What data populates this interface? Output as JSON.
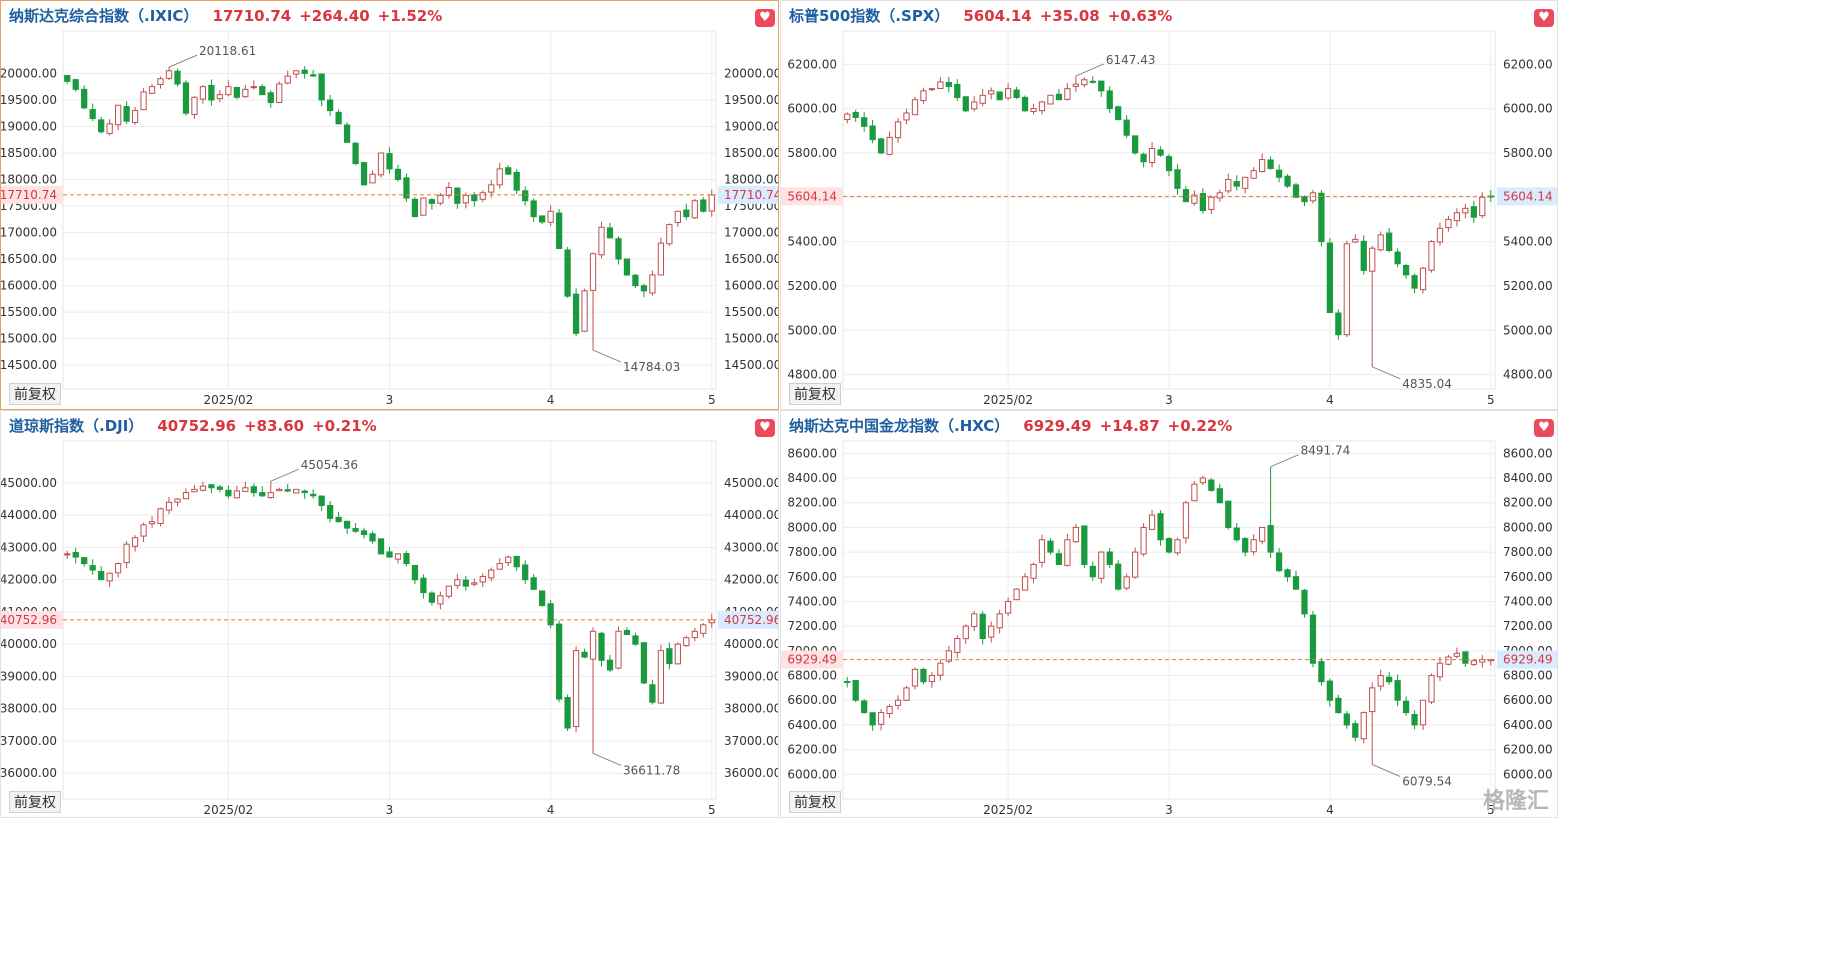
{
  "adjust_label": "前复权",
  "watermark": "格隆汇",
  "colors": {
    "up": "#c0504d",
    "down": "#1a9a3e",
    "grid": "#ececec",
    "axis_text": "#333333",
    "ref_line": "#e07a3a",
    "tag_left_bg": "#fde3e3",
    "tag_left_text": "#d9363e",
    "tag_right_bg": "#d9ecff",
    "tag_right_text": "#d9363e"
  },
  "panels": [
    {
      "name": "纳斯达克综合指数（.IXIC）",
      "price": "17710.74",
      "change": "+264.40",
      "pct": "+1.52%",
      "price_tag": "17710.74",
      "high_label": "20118.61",
      "low_label": "14784.03"
    },
    {
      "name": "标普500指数（.SPX）",
      "price": "5604.14",
      "change": "+35.08",
      "pct": "+0.63%",
      "price_tag": "5604.14",
      "high_label": "6147.43",
      "low_label": "4835.04"
    },
    {
      "name": "道琼斯指数（.DJI）",
      "price": "40752.96",
      "change": "+83.60",
      "pct": "+0.21%",
      "price_tag": "40752.96",
      "high_label": "45054.36",
      "low_label": "36611.78"
    },
    {
      "name": "纳斯达克中国金龙指数（.HXC）",
      "price": "6929.49",
      "change": "+14.87",
      "pct": "+0.22%",
      "price_tag": "6929.49",
      "high_label": "8491.74",
      "low_label": "6079.54"
    }
  ],
  "chart_data": [
    {
      "type": "candlestick",
      "title": "纳斯达克综合指数（.IXIC）",
      "x_tick_labels": [
        "2025/02",
        "3",
        "4",
        "5"
      ],
      "x_tick_index": [
        19,
        38,
        57,
        76
      ],
      "y_ticks": [
        "20000.00",
        "19500.00",
        "19000.00",
        "18500.00",
        "18000.00",
        "17500.00",
        "17000.00",
        "16500.00",
        "16000.00",
        "15500.00",
        "15000.00",
        "14500.00"
      ],
      "y_tick_values": [
        20000,
        19500,
        19000,
        18500,
        18000,
        17500,
        17000,
        16500,
        16000,
        15500,
        15000,
        14500
      ],
      "ylim": [
        14050,
        20800
      ],
      "current_price": 17710.74,
      "high": {
        "value": 20118.61,
        "label": "20118.61",
        "index": 12
      },
      "low": {
        "value": 14784.03,
        "label": "14784.03",
        "index": 62
      },
      "closes": [
        19850,
        19700,
        19350,
        19150,
        18900,
        19050,
        19400,
        19100,
        19300,
        19650,
        19750,
        19900,
        20050,
        19800,
        19250,
        19550,
        19750,
        19500,
        19600,
        19750,
        19550,
        19700,
        19750,
        19600,
        19450,
        19800,
        19950,
        20050,
        20000,
        19950,
        19500,
        19300,
        19050,
        18700,
        18300,
        17900,
        18100,
        18500,
        18200,
        18000,
        17650,
        17300,
        17650,
        17550,
        17700,
        17850,
        17550,
        17700,
        17600,
        17750,
        17900,
        18200,
        18100,
        17800,
        17600,
        17300,
        17200,
        17400,
        16700,
        15800,
        15100,
        15900,
        16600,
        17100,
        16900,
        16500,
        16200,
        16000,
        15900,
        16200,
        16800,
        17150,
        17400,
        17300,
        17600,
        17400,
        17710
      ]
    },
    {
      "type": "candlestick",
      "title": "标普500指数（.SPX）",
      "x_tick_labels": [
        "2025/02",
        "3",
        "4",
        "5"
      ],
      "x_tick_index": [
        19,
        38,
        57,
        76
      ],
      "y_ticks": [
        "6200.00",
        "6000.00",
        "5800.00",
        "5600.00",
        "5400.00",
        "5200.00",
        "5000.00",
        "4800.00"
      ],
      "y_tick_values": [
        6200,
        6000,
        5800,
        5600,
        5400,
        5200,
        5000,
        4800
      ],
      "ylim": [
        4735,
        6350
      ],
      "current_price": 5604.14,
      "high": {
        "value": 6147.43,
        "label": "6147.43",
        "index": 27
      },
      "low": {
        "value": 4835.04,
        "label": "4835.04",
        "index": 62
      },
      "closes": [
        5975,
        5960,
        5920,
        5860,
        5800,
        5870,
        5940,
        5980,
        6040,
        6080,
        6090,
        6120,
        6100,
        6050,
        5990,
        6030,
        6060,
        6080,
        6040,
        6090,
        6050,
        5990,
        6000,
        6030,
        6060,
        6040,
        6090,
        6110,
        6130,
        6120,
        6080,
        6000,
        5950,
        5880,
        5800,
        5760,
        5820,
        5790,
        5720,
        5640,
        5580,
        5610,
        5540,
        5600,
        5620,
        5680,
        5650,
        5690,
        5720,
        5770,
        5730,
        5690,
        5650,
        5600,
        5580,
        5620,
        5400,
        5080,
        4980,
        5390,
        5410,
        5270,
        5370,
        5430,
        5360,
        5300,
        5250,
        5190,
        5280,
        5400,
        5460,
        5500,
        5530,
        5550,
        5510,
        5600,
        5604
      ]
    },
    {
      "type": "candlestick",
      "title": "道琼斯指数（.DJI）",
      "x_tick_labels": [
        "2025/02",
        "3",
        "4",
        "5"
      ],
      "x_tick_index": [
        19,
        38,
        57,
        76
      ],
      "y_ticks": [
        "45000.00",
        "44000.00",
        "43000.00",
        "42000.00",
        "41000.00",
        "40000.00",
        "39000.00",
        "38000.00",
        "37000.00",
        "36000.00"
      ],
      "y_tick_values": [
        45000,
        44000,
        43000,
        42000,
        41000,
        40000,
        39000,
        38000,
        37000,
        36000
      ],
      "ylim": [
        35200,
        46300
      ],
      "current_price": 40752.96,
      "high": {
        "value": 45054.36,
        "label": "45054.36",
        "index": 24
      },
      "low": {
        "value": 36611.78,
        "label": "36611.78",
        "index": 62
      },
      "closes": [
        42800,
        42700,
        42500,
        42300,
        42000,
        42200,
        42500,
        43100,
        43300,
        43700,
        43800,
        44200,
        44400,
        44500,
        44700,
        44800,
        44900,
        44850,
        44800,
        44600,
        44750,
        44850,
        44700,
        44600,
        44700,
        44800,
        44750,
        44800,
        44700,
        44600,
        44300,
        43900,
        43800,
        43600,
        43500,
        43400,
        43200,
        42800,
        42700,
        42800,
        42500,
        42000,
        41600,
        41300,
        41500,
        41800,
        42000,
        41800,
        41900,
        42100,
        42300,
        42500,
        42700,
        42400,
        42000,
        41700,
        41200,
        40600,
        38300,
        37400,
        39800,
        39600,
        40400,
        39500,
        39200,
        40400,
        40300,
        40000,
        38800,
        38200,
        39800,
        39400,
        40000,
        40200,
        40400,
        40600,
        40753
      ]
    },
    {
      "type": "candlestick",
      "title": "纳斯达克中国金龙指数（.HXC）",
      "x_tick_labels": [
        "2025/02",
        "3",
        "4",
        "5"
      ],
      "x_tick_index": [
        19,
        38,
        57,
        76
      ],
      "y_ticks": [
        "8600.00",
        "8400.00",
        "8200.00",
        "8000.00",
        "7800.00",
        "7600.00",
        "7400.00",
        "7200.00",
        "7000.00",
        "6800.00",
        "6600.00",
        "6400.00",
        "6200.00",
        "6000.00"
      ],
      "y_tick_values": [
        8600,
        8400,
        8200,
        8000,
        7800,
        7600,
        7400,
        7200,
        7000,
        6800,
        6600,
        6400,
        6200,
        6000
      ],
      "ylim": [
        5800,
        8700
      ],
      "current_price": 6929.49,
      "high": {
        "value": 8491.74,
        "label": "8491.74",
        "index": 50
      },
      "low": {
        "value": 6079.54,
        "label": "6079.54",
        "index": 62
      },
      "closes": [
        6750,
        6600,
        6500,
        6400,
        6500,
        6550,
        6600,
        6700,
        6850,
        6750,
        6800,
        6900,
        7000,
        7100,
        7200,
        7300,
        7100,
        7200,
        7300,
        7400,
        7500,
        7600,
        7700,
        7900,
        7800,
        7700,
        7900,
        8000,
        7700,
        7600,
        7800,
        7700,
        7500,
        7600,
        7800,
        8000,
        8100,
        7900,
        7800,
        7900,
        8200,
        8350,
        8400,
        8300,
        8200,
        8000,
        7900,
        7800,
        7900,
        8000,
        7800,
        7650,
        7600,
        7500,
        7300,
        6900,
        6750,
        6600,
        6500,
        6400,
        6300,
        6500,
        6700,
        6800,
        6750,
        6600,
        6500,
        6400,
        6600,
        6800,
        6900,
        6950,
        6980,
        6900,
        6920,
        6930,
        6929
      ]
    }
  ]
}
